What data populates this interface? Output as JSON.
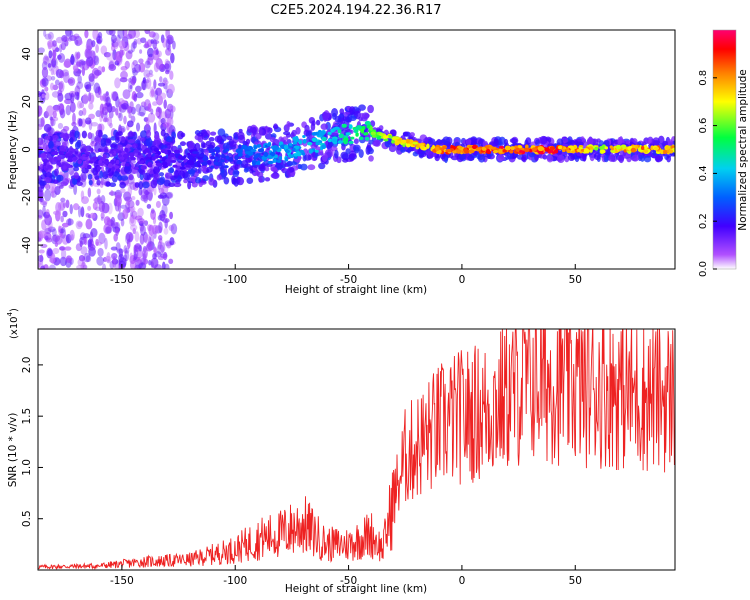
{
  "title": "C2E5.2024.194.22.36.R17",
  "chart_data": [
    {
      "type": "heatmap",
      "xlabel": "Height of straight line (km)",
      "ylabel": "Frequency (Hz)",
      "xlim": [
        -187,
        94
      ],
      "ylim": [
        -50,
        50
      ],
      "xticks": [
        -150,
        -100,
        -50,
        0,
        50
      ],
      "yticks": [
        -40,
        -20,
        0,
        20,
        40
      ],
      "colorbar": {
        "label": "Normalized spectral amplitude",
        "range": [
          0.0,
          1.0
        ],
        "ticks": [
          "0.0",
          "0.2",
          "0.4",
          "0.6",
          "0.8"
        ],
        "colormap": [
          "#ffffff",
          "#a000ff",
          "#2000ff",
          "#00c8ff",
          "#00ff40",
          "#ffff00",
          "#ff8000",
          "#ff0000",
          "#ff0060"
        ]
      },
      "ridge": {
        "x": [
          -187,
          -150,
          -120,
          -100,
          -80,
          -65,
          -55,
          -45,
          -40,
          -30,
          -20,
          -10,
          0,
          20,
          40,
          60,
          80,
          94
        ],
        "frequency": [
          -4,
          -4,
          -4,
          -3,
          -1,
          3,
          5,
          8,
          7,
          4,
          2,
          0,
          0,
          0,
          0,
          0,
          0,
          0
        ],
        "amplitude": [
          0.15,
          0.15,
          0.2,
          0.28,
          0.38,
          0.42,
          0.48,
          0.55,
          0.6,
          0.72,
          0.8,
          0.88,
          0.9,
          0.92,
          0.92,
          0.75,
          0.85,
          0.8
        ]
      },
      "grid": false
    },
    {
      "type": "line",
      "xlabel": "Height of straight line (km)",
      "ylabel": "SNR (10 * v/v)",
      "scale_label": "(x10",
      "scale_exp": "4",
      "scale_close": ")",
      "xlim": [
        -187,
        94
      ],
      "ylim": [
        0,
        23500
      ],
      "xticks": [
        -150,
        -100,
        -50,
        0,
        50
      ],
      "yticks": [
        5000,
        10000,
        15000,
        20000
      ],
      "ytick_labels": [
        "0.5",
        "1.0",
        "1.5",
        "2.0"
      ],
      "color": "#ee2222",
      "envelope": {
        "x": [
          -187,
          -160,
          -140,
          -120,
          -100,
          -90,
          -80,
          -70,
          -60,
          -50,
          -40,
          -35,
          -30,
          -25,
          -20,
          -10,
          0,
          10,
          20,
          30,
          40,
          50,
          60,
          70,
          80,
          94
        ],
        "y": [
          300,
          400,
          800,
          1000,
          2000,
          3000,
          3500,
          4500,
          2500,
          2500,
          3500,
          2000,
          7000,
          11000,
          12000,
          14000,
          15000,
          15500,
          17000,
          18500,
          18500,
          18000,
          18000,
          17500,
          17000,
          17000
        ]
      },
      "grid": false
    }
  ]
}
